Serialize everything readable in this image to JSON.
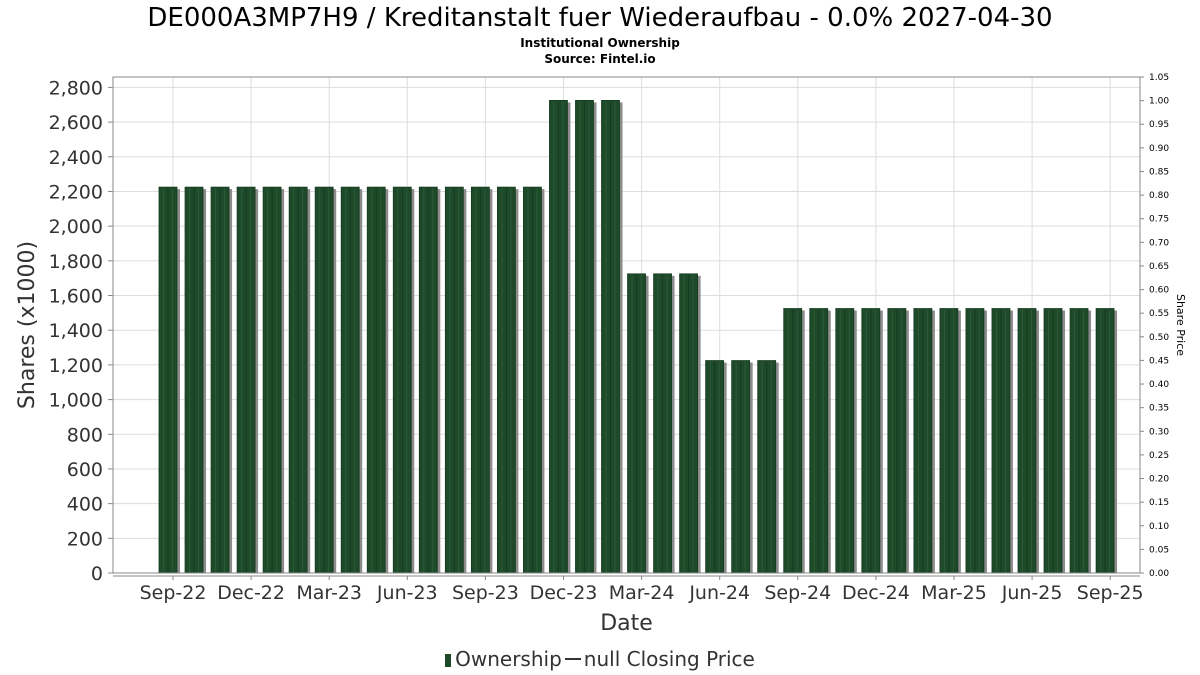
{
  "header": {
    "title": "DE000A3MP7H9 / Kreditanstalt fuer Wiederaufbau - 0.0% 2027-04-30",
    "subtitle1": "Institutional Ownership",
    "subtitle2": "Source: Fintel.io"
  },
  "legend": {
    "ownership": "Ownership",
    "price": "null Closing Price"
  },
  "colors": {
    "bar": "#1e4a2a",
    "bar_shadow": "#8c8c8c",
    "grid": "#dddddd",
    "plot_border": "#888888"
  },
  "chart_data": {
    "type": "bar",
    "xlabel": "Date",
    "ylabel": "Shares (x1000)",
    "y2label": "Share Price",
    "ylim": [
      0,
      2860
    ],
    "y2lim": [
      0,
      1.05
    ],
    "grid": true,
    "legend_position": "bottom",
    "yticks": [
      "0",
      "200",
      "400",
      "600",
      "800",
      "1,000",
      "1,200",
      "1,400",
      "1,600",
      "1,800",
      "2,000",
      "2,200",
      "2,400",
      "2,600",
      "2,800"
    ],
    "y2ticks": [
      "0.00",
      "0.05",
      "0.10",
      "0.15",
      "0.20",
      "0.25",
      "0.30",
      "0.35",
      "0.40",
      "0.45",
      "0.50",
      "0.55",
      "0.60",
      "0.65",
      "0.70",
      "0.75",
      "0.80",
      "0.85",
      "0.90",
      "0.95",
      "1.00",
      "1.05"
    ],
    "xticks": [
      "Sep-22",
      "Dec-22",
      "Mar-23",
      "Jun-23",
      "Sep-23",
      "Dec-23",
      "Mar-24",
      "Jun-24",
      "Sep-24",
      "Dec-24",
      "Mar-25",
      "Jun-25",
      "Sep-25"
    ],
    "series": [
      {
        "name": "Ownership",
        "values": [
          2225,
          2225,
          2225,
          2225,
          2225,
          2225,
          2225,
          2225,
          2225,
          2225,
          2225,
          2225,
          2225,
          2225,
          2225,
          2725,
          2725,
          2725,
          1725,
          1725,
          1725,
          1225,
          1225,
          1225,
          1525,
          1525,
          1525,
          1525,
          1525,
          1525,
          1525,
          1525,
          1525,
          1525,
          1525,
          1525,
          1525
        ]
      }
    ]
  }
}
